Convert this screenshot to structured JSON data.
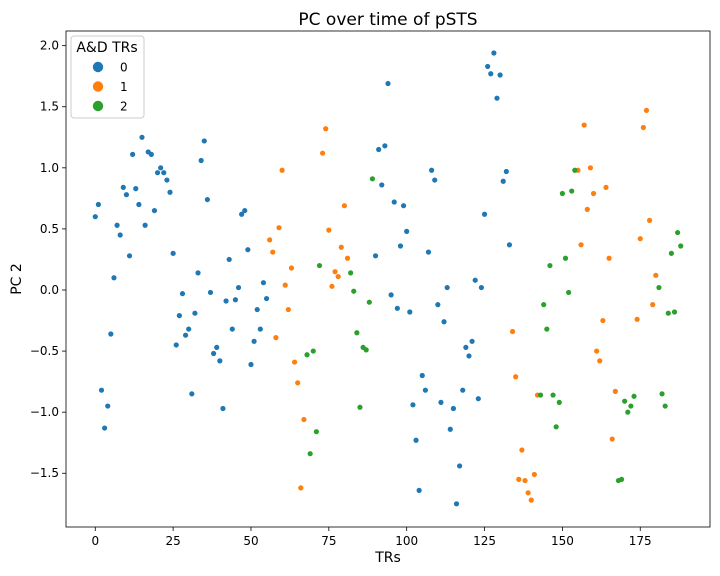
{
  "chart_data": {
    "type": "scatter",
    "title": "PC over time of pSTS",
    "xlabel": "TRs",
    "ylabel": "PC 2",
    "xlim": [
      -9.4,
      197.4
    ],
    "ylim": [
      -1.94,
      2.12
    ],
    "x_ticks": [
      0,
      25,
      50,
      75,
      100,
      125,
      150,
      175
    ],
    "y_ticks": [
      -1.5,
      -1.0,
      -0.5,
      0.0,
      0.5,
      1.0,
      1.5,
      2.0
    ],
    "x_tick_labels": [
      "0",
      "25",
      "50",
      "75",
      "100",
      "125",
      "150",
      "175"
    ],
    "y_tick_labels": [
      "−1.5",
      "−1.0",
      "−0.5",
      "0.0",
      "0.5",
      "1.0",
      "1.5",
      "2.0"
    ],
    "grid": false,
    "legend": {
      "title": "A&D TRs",
      "position": "top-left"
    },
    "series": [
      {
        "name": "0",
        "color": "#1f77b4",
        "points": [
          [
            0,
            0.6
          ],
          [
            1,
            0.7
          ],
          [
            2,
            -0.82
          ],
          [
            3,
            -1.13
          ],
          [
            4,
            -0.95
          ],
          [
            5,
            -0.36
          ],
          [
            6,
            0.1
          ],
          [
            7,
            0.53
          ],
          [
            8,
            0.45
          ],
          [
            9,
            0.84
          ],
          [
            10,
            0.78
          ],
          [
            11,
            0.28
          ],
          [
            12,
            1.11
          ],
          [
            13,
            0.83
          ],
          [
            14,
            0.7
          ],
          [
            15,
            1.25
          ],
          [
            16,
            0.53
          ],
          [
            17,
            1.13
          ],
          [
            18,
            1.11
          ],
          [
            19,
            0.65
          ],
          [
            20,
            0.96
          ],
          [
            21,
            1.0
          ],
          [
            22,
            0.96
          ],
          [
            23,
            0.9
          ],
          [
            24,
            0.8
          ],
          [
            25,
            0.3
          ],
          [
            26,
            -0.45
          ],
          [
            27,
            -0.21
          ],
          [
            28,
            -0.03
          ],
          [
            29,
            -0.37
          ],
          [
            30,
            -0.32
          ],
          [
            31,
            -0.85
          ],
          [
            32,
            -0.19
          ],
          [
            33,
            0.14
          ],
          [
            34,
            1.06
          ],
          [
            35,
            1.22
          ],
          [
            36,
            0.74
          ],
          [
            37,
            -0.02
          ],
          [
            38,
            -0.52
          ],
          [
            39,
            -0.47
          ],
          [
            40,
            -0.58
          ],
          [
            41,
            -0.97
          ],
          [
            42,
            -0.09
          ],
          [
            43,
            0.25
          ],
          [
            44,
            -0.32
          ],
          [
            45,
            -0.08
          ],
          [
            46,
            0.02
          ],
          [
            47,
            0.62
          ],
          [
            48,
            0.65
          ],
          [
            49,
            0.33
          ],
          [
            50,
            -0.61
          ],
          [
            51,
            -0.42
          ],
          [
            52,
            -0.16
          ],
          [
            53,
            -0.32
          ],
          [
            54,
            0.06
          ],
          [
            55,
            -0.07
          ],
          [
            90,
            0.28
          ],
          [
            91,
            1.15
          ],
          [
            92,
            0.86
          ],
          [
            93,
            1.18
          ],
          [
            94,
            1.69
          ],
          [
            95,
            -0.04
          ],
          [
            96,
            0.72
          ],
          [
            97,
            -0.15
          ],
          [
            98,
            0.36
          ],
          [
            99,
            0.69
          ],
          [
            100,
            0.48
          ],
          [
            101,
            -0.18
          ],
          [
            102,
            -0.94
          ],
          [
            103,
            -1.23
          ],
          [
            104,
            -1.64
          ],
          [
            105,
            -0.7
          ],
          [
            106,
            -0.82
          ],
          [
            107,
            0.31
          ],
          [
            108,
            0.98
          ],
          [
            109,
            0.9
          ],
          [
            110,
            -0.12
          ],
          [
            111,
            -0.92
          ],
          [
            112,
            -0.26
          ],
          [
            113,
            0.02
          ],
          [
            114,
            -1.14
          ],
          [
            115,
            -0.97
          ],
          [
            116,
            -1.75
          ],
          [
            117,
            -1.44
          ],
          [
            118,
            -0.82
          ],
          [
            119,
            -0.47
          ],
          [
            120,
            -0.54
          ],
          [
            121,
            -0.42
          ],
          [
            122,
            0.08
          ],
          [
            123,
            -0.89
          ],
          [
            124,
            0.02
          ],
          [
            125,
            0.62
          ],
          [
            126,
            1.83
          ],
          [
            127,
            1.77
          ],
          [
            128,
            1.94
          ],
          [
            129,
            1.57
          ],
          [
            130,
            1.76
          ],
          [
            131,
            0.89
          ],
          [
            132,
            0.97
          ],
          [
            133,
            0.37
          ]
        ]
      },
      {
        "name": "1",
        "color": "#ff7f0e",
        "points": [
          [
            56,
            0.41
          ],
          [
            57,
            0.31
          ],
          [
            58,
            -0.39
          ],
          [
            59,
            0.51
          ],
          [
            60,
            0.98
          ],
          [
            61,
            0.04
          ],
          [
            62,
            -0.16
          ],
          [
            63,
            0.18
          ],
          [
            64,
            -0.59
          ],
          [
            65,
            -0.76
          ],
          [
            66,
            -1.62
          ],
          [
            67,
            -1.06
          ],
          [
            73,
            1.12
          ],
          [
            74,
            1.32
          ],
          [
            75,
            0.49
          ],
          [
            76,
            0.03
          ],
          [
            77,
            0.15
          ],
          [
            78,
            0.11
          ],
          [
            79,
            0.35
          ],
          [
            80,
            0.69
          ],
          [
            81,
            0.26
          ],
          [
            134,
            -0.34
          ],
          [
            135,
            -0.71
          ],
          [
            136,
            -1.55
          ],
          [
            137,
            -1.31
          ],
          [
            138,
            -1.56
          ],
          [
            139,
            -1.66
          ],
          [
            140,
            -1.72
          ],
          [
            141,
            -1.51
          ],
          [
            142,
            -0.86
          ],
          [
            155,
            0.98
          ],
          [
            156,
            0.37
          ],
          [
            157,
            1.35
          ],
          [
            158,
            0.66
          ],
          [
            159,
            1.0
          ],
          [
            160,
            0.79
          ],
          [
            161,
            -0.5
          ],
          [
            162,
            -0.58
          ],
          [
            163,
            -0.25
          ],
          [
            164,
            0.84
          ],
          [
            165,
            0.26
          ],
          [
            166,
            -1.22
          ],
          [
            167,
            -0.83
          ],
          [
            174,
            -0.24
          ],
          [
            175,
            0.42
          ],
          [
            176,
            1.33
          ],
          [
            177,
            1.47
          ],
          [
            178,
            0.57
          ],
          [
            179,
            -0.12
          ],
          [
            180,
            0.12
          ]
        ]
      },
      {
        "name": "2",
        "color": "#2ca02c",
        "points": [
          [
            68,
            -0.53
          ],
          [
            69,
            -1.34
          ],
          [
            70,
            -0.5
          ],
          [
            71,
            -1.16
          ],
          [
            72,
            0.2
          ],
          [
            82,
            0.14
          ],
          [
            83,
            -0.01
          ],
          [
            84,
            -0.35
          ],
          [
            85,
            -0.96
          ],
          [
            86,
            -0.47
          ],
          [
            87,
            -0.49
          ],
          [
            88,
            -0.1
          ],
          [
            89,
            0.91
          ],
          [
            143,
            -0.86
          ],
          [
            144,
            -0.12
          ],
          [
            145,
            -0.32
          ],
          [
            146,
            0.2
          ],
          [
            147,
            -0.86
          ],
          [
            148,
            -1.12
          ],
          [
            149,
            -0.92
          ],
          [
            150,
            0.79
          ],
          [
            151,
            0.26
          ],
          [
            152,
            -0.02
          ],
          [
            153,
            0.81
          ],
          [
            154,
            0.98
          ],
          [
            168,
            -1.56
          ],
          [
            169,
            -1.55
          ],
          [
            170,
            -0.91
          ],
          [
            171,
            -1.0
          ],
          [
            172,
            -0.95
          ],
          [
            173,
            -0.87
          ],
          [
            181,
            0.02
          ],
          [
            182,
            -0.85
          ],
          [
            183,
            -0.95
          ],
          [
            184,
            -0.19
          ],
          [
            185,
            0.3
          ],
          [
            186,
            -0.18
          ],
          [
            187,
            0.47
          ],
          [
            188,
            0.36
          ]
        ]
      }
    ]
  }
}
